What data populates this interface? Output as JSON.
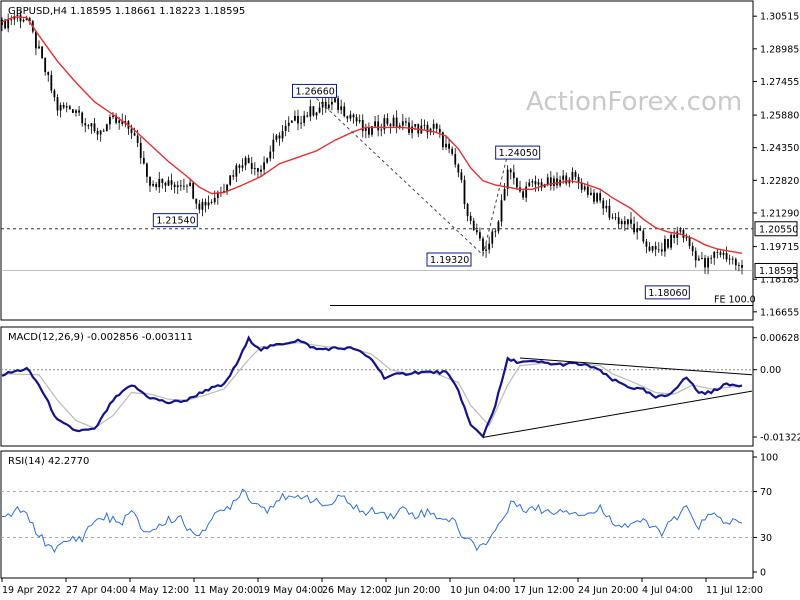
{
  "chart_data": [
    {
      "type": "candlestick",
      "title": "GBPUSD,H4  1.18595 1.18661 1.18223 1.18595",
      "watermark": "ActionForex.com",
      "ylim": [
        1.1632,
        1.3118
      ],
      "y_ticks": [
        "1.30515",
        "1.28985",
        "1.27455",
        "1.25880",
        "1.24350",
        "1.22820",
        "1.21290",
        "1.19715",
        "1.18185",
        "1.16655"
      ],
      "x_labels": [
        "19 Apr 2022",
        "27 Apr 04:00",
        "4 May 12:00",
        "11 May 20:00",
        "19 May 04:00",
        "26 May 12:00",
        "2 Jun 20:00",
        "10 Jun 04:00",
        "17 Jun 12:00",
        "24 Jun 20:00",
        "4 Jul 04:00",
        "11 Jul 12:00"
      ],
      "price_path": [
        [
          0,
          1.301
        ],
        [
          4,
          1.3055
        ],
        [
          8,
          1.304
        ],
        [
          12,
          1.288
        ],
        [
          18,
          1.262
        ],
        [
          24,
          1.262
        ],
        [
          30,
          1.25
        ],
        [
          36,
          1.256
        ],
        [
          42,
          1.252
        ],
        [
          48,
          1.228
        ],
        [
          54,
          1.226
        ],
        [
          60,
          1.228
        ],
        [
          64,
          1.217
        ],
        [
          68,
          1.219
        ],
        [
          72,
          1.226
        ],
        [
          78,
          1.238
        ],
        [
          84,
          1.234
        ],
        [
          90,
          1.25
        ],
        [
          96,
          1.257
        ],
        [
          102,
          1.262
        ],
        [
          108,
          1.264
        ],
        [
          114,
          1.258
        ],
        [
          118,
          1.25
        ],
        [
          124,
          1.256
        ],
        [
          130,
          1.254
        ],
        [
          136,
          1.252
        ],
        [
          140,
          1.253
        ],
        [
          144,
          1.244
        ],
        [
          148,
          1.232
        ],
        [
          152,
          1.208
        ],
        [
          156,
          1.195
        ],
        [
          160,
          1.204
        ],
        [
          164,
          1.2335
        ],
        [
          168,
          1.222
        ],
        [
          172,
          1.226
        ],
        [
          176,
          1.227
        ],
        [
          180,
          1.226
        ],
        [
          184,
          1.231
        ],
        [
          188,
          1.226
        ],
        [
          194,
          1.218
        ],
        [
          198,
          1.211
        ],
        [
          204,
          1.207
        ],
        [
          208,
          1.2
        ],
        [
          212,
          1.194
        ],
        [
          216,
          1.199
        ],
        [
          220,
          1.205
        ],
        [
          224,
          1.195
        ],
        [
          228,
          1.188
        ],
        [
          232,
          1.195
        ],
        [
          236,
          1.192
        ],
        [
          240,
          1.186
        ]
      ],
      "ma_path": [
        [
          0,
          1.3025
        ],
        [
          4,
          1.3048
        ],
        [
          8,
          1.3045
        ],
        [
          12,
          1.296
        ],
        [
          18,
          1.284
        ],
        [
          24,
          1.274
        ],
        [
          30,
          1.265
        ],
        [
          36,
          1.259
        ],
        [
          42,
          1.253
        ],
        [
          48,
          1.245
        ],
        [
          54,
          1.237
        ],
        [
          60,
          1.23
        ],
        [
          64,
          1.225
        ],
        [
          68,
          1.222
        ],
        [
          72,
          1.2225
        ],
        [
          78,
          1.226
        ],
        [
          84,
          1.23
        ],
        [
          90,
          1.236
        ],
        [
          96,
          1.239
        ],
        [
          102,
          1.242
        ],
        [
          108,
          1.247
        ],
        [
          114,
          1.251
        ],
        [
          118,
          1.253
        ],
        [
          124,
          1.253
        ],
        [
          130,
          1.253
        ],
        [
          136,
          1.252
        ],
        [
          140,
          1.251
        ],
        [
          144,
          1.249
        ],
        [
          148,
          1.243
        ],
        [
          152,
          1.234
        ],
        [
          156,
          1.228
        ],
        [
          160,
          1.226
        ],
        [
          164,
          1.225
        ],
        [
          168,
          1.224
        ],
        [
          172,
          1.224
        ],
        [
          176,
          1.226
        ],
        [
          180,
          1.227
        ],
        [
          184,
          1.228
        ],
        [
          188,
          1.227
        ],
        [
          194,
          1.224
        ],
        [
          198,
          1.22
        ],
        [
          204,
          1.215
        ],
        [
          208,
          1.21
        ],
        [
          212,
          1.206
        ],
        [
          216,
          1.204
        ],
        [
          220,
          1.203
        ],
        [
          224,
          1.201
        ],
        [
          228,
          1.198
        ],
        [
          232,
          1.196
        ],
        [
          236,
          1.195
        ],
        [
          240,
          1.194
        ]
      ],
      "annotations": [
        {
          "label": "1.26660",
          "x": 102,
          "y": 1.2666
        },
        {
          "label": "1.21540",
          "x": 64,
          "y": 1.2154
        },
        {
          "label": "1.24050",
          "x": 164,
          "y": 1.2405
        },
        {
          "label": "1.19320",
          "x": 156,
          "y": 1.1932
        },
        {
          "label": "1.18060",
          "x": 232,
          "y": 1.1806
        }
      ],
      "level_1": {
        "value": 1.2055,
        "label": "1.20550"
      },
      "current": {
        "value": 1.18595,
        "label": "1.18595"
      },
      "fe_level": {
        "value": 1.1695,
        "label": "FE 100.0"
      }
    },
    {
      "type": "line",
      "title": "MACD(12,26,9) -0.002856 -0.003111",
      "ylim": [
        -0.0146,
        0.0078
      ],
      "y_ticks": [
        "0.006285",
        "0.00",
        "-0.013223"
      ],
      "macd_path": [
        [
          0,
          -0.001
        ],
        [
          8,
          0.0002
        ],
        [
          12,
          -0.003
        ],
        [
          18,
          -0.01
        ],
        [
          24,
          -0.012
        ],
        [
          30,
          -0.0118
        ],
        [
          36,
          -0.006
        ],
        [
          42,
          -0.003
        ],
        [
          48,
          -0.0055
        ],
        [
          54,
          -0.0065
        ],
        [
          60,
          -0.006
        ],
        [
          66,
          -0.004
        ],
        [
          72,
          -0.003
        ],
        [
          76,
          0.001
        ],
        [
          80,
          0.006
        ],
        [
          84,
          0.004
        ],
        [
          90,
          0.005
        ],
        [
          96,
          0.0058
        ],
        [
          102,
          0.004
        ],
        [
          108,
          0.0042
        ],
        [
          114,
          0.0042
        ],
        [
          120,
          0.002
        ],
        [
          124,
          -0.0015
        ],
        [
          128,
          -0.001
        ],
        [
          134,
          -0.0005
        ],
        [
          140,
          -0.0005
        ],
        [
          144,
          -0.0005
        ],
        [
          148,
          -0.004
        ],
        [
          152,
          -0.011
        ],
        [
          156,
          -0.013
        ],
        [
          160,
          -0.007
        ],
        [
          164,
          0.002
        ],
        [
          168,
          0.0015
        ],
        [
          174,
          0.0015
        ],
        [
          180,
          0.001
        ],
        [
          186,
          0.0012
        ],
        [
          192,
          0.0005
        ],
        [
          198,
          -0.002
        ],
        [
          204,
          -0.0035
        ],
        [
          208,
          -0.004
        ],
        [
          212,
          -0.0055
        ],
        [
          216,
          -0.005
        ],
        [
          222,
          -0.0015
        ],
        [
          226,
          -0.0045
        ],
        [
          230,
          -0.0045
        ],
        [
          234,
          -0.003
        ],
        [
          240,
          -0.003
        ]
      ],
      "signal_path": [
        [
          0,
          -0.0008
        ],
        [
          12,
          -0.001
        ],
        [
          18,
          -0.006
        ],
        [
          24,
          -0.01
        ],
        [
          30,
          -0.0115
        ],
        [
          36,
          -0.009
        ],
        [
          42,
          -0.0045
        ],
        [
          48,
          -0.0048
        ],
        [
          54,
          -0.0058
        ],
        [
          60,
          -0.006
        ],
        [
          66,
          -0.005
        ],
        [
          72,
          -0.0038
        ],
        [
          80,
          0.002
        ],
        [
          84,
          0.0045
        ],
        [
          90,
          0.0048
        ],
        [
          96,
          0.0053
        ],
        [
          102,
          0.0048
        ],
        [
          108,
          0.0043
        ],
        [
          114,
          0.0042
        ],
        [
          120,
          0.003
        ],
        [
          126,
          0.0
        ],
        [
          132,
          -0.0008
        ],
        [
          140,
          -0.0006
        ],
        [
          148,
          -0.0025
        ],
        [
          152,
          -0.007
        ],
        [
          158,
          -0.011
        ],
        [
          164,
          -0.003
        ],
        [
          168,
          0.0008
        ],
        [
          176,
          0.0013
        ],
        [
          186,
          0.0012
        ],
        [
          194,
          0.0008
        ],
        [
          198,
          -0.0008
        ],
        [
          206,
          -0.0028
        ],
        [
          212,
          -0.0045
        ],
        [
          218,
          -0.0048
        ],
        [
          224,
          -0.003
        ],
        [
          230,
          -0.0038
        ],
        [
          240,
          -0.0032
        ]
      ],
      "trendline_upper": [
        [
          168,
          0.0023
        ],
        [
          240,
          -0.001
        ]
      ],
      "trendline_lower": [
        [
          156,
          -0.0133
        ],
        [
          240,
          -0.0042
        ]
      ]
    },
    {
      "type": "line",
      "title": "RSI(14) 42.2770",
      "ylim": [
        0,
        100
      ],
      "y_ticks": [
        "100",
        "70",
        "30",
        "0"
      ],
      "rsi_path": [
        [
          0,
          45
        ],
        [
          6,
          55
        ],
        [
          10,
          40
        ],
        [
          14,
          25
        ],
        [
          18,
          20
        ],
        [
          22,
          28
        ],
        [
          26,
          30
        ],
        [
          30,
          45
        ],
        [
          34,
          48
        ],
        [
          38,
          42
        ],
        [
          42,
          52
        ],
        [
          46,
          35
        ],
        [
          50,
          38
        ],
        [
          54,
          45
        ],
        [
          58,
          48
        ],
        [
          62,
          30
        ],
        [
          66,
          40
        ],
        [
          70,
          50
        ],
        [
          74,
          58
        ],
        [
          78,
          72
        ],
        [
          82,
          60
        ],
        [
          86,
          55
        ],
        [
          90,
          65
        ],
        [
          94,
          62
        ],
        [
          98,
          68
        ],
        [
          102,
          60
        ],
        [
          106,
          58
        ],
        [
          110,
          65
        ],
        [
          114,
          58
        ],
        [
          118,
          50
        ],
        [
          122,
          55
        ],
        [
          126,
          48
        ],
        [
          130,
          55
        ],
        [
          134,
          50
        ],
        [
          138,
          52
        ],
        [
          142,
          48
        ],
        [
          146,
          45
        ],
        [
          150,
          30
        ],
        [
          154,
          22
        ],
        [
          158,
          28
        ],
        [
          162,
          45
        ],
        [
          166,
          62
        ],
        [
          170,
          55
        ],
        [
          174,
          55
        ],
        [
          178,
          52
        ],
        [
          182,
          55
        ],
        [
          186,
          52
        ],
        [
          190,
          50
        ],
        [
          194,
          55
        ],
        [
          198,
          45
        ],
        [
          202,
          40
        ],
        [
          206,
          45
        ],
        [
          210,
          40
        ],
        [
          214,
          35
        ],
        [
          218,
          45
        ],
        [
          222,
          55
        ],
        [
          226,
          40
        ],
        [
          230,
          50
        ],
        [
          234,
          45
        ],
        [
          240,
          42
        ]
      ],
      "levels": [
        70,
        30
      ]
    }
  ]
}
